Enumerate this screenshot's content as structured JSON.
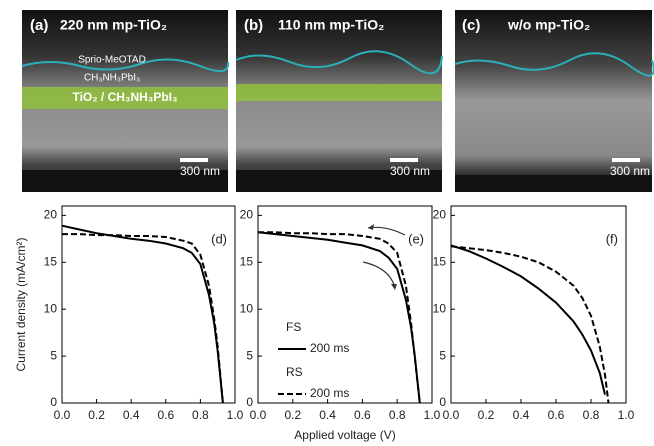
{
  "images": [
    {
      "label": "(a)",
      "title": "220 nm mp-TiO₂",
      "layers": [
        "Sprio-MeOTAD",
        "CH₃NH₃PbI₃",
        "TiO₂ / CH₃NH₃PbI₃"
      ],
      "scale": "300 nm"
    },
    {
      "label": "(b)",
      "title": "110 nm mp-TiO₂",
      "scale": "300 nm"
    },
    {
      "label": "(c)",
      "title": "w/o mp-TiO₂",
      "scale": "300 nm"
    }
  ],
  "chart_data": [
    {
      "type": "line",
      "annotation": "(d)",
      "ylabel": "Current density (mA/cm²)",
      "x": [
        0,
        0.1,
        0.2,
        0.3,
        0.4,
        0.5,
        0.6,
        0.7,
        0.75,
        0.8,
        0.85,
        0.88,
        0.9,
        0.93
      ],
      "series": [
        {
          "name": "FS",
          "color": "#000000",
          "dash": false,
          "values": [
            18.9,
            18.5,
            18.1,
            17.8,
            17.5,
            17.3,
            17.0,
            16.5,
            16.0,
            14.8,
            11.5,
            8.5,
            5.5,
            0
          ]
        },
        {
          "name": "RS",
          "color": "#000000",
          "dash": true,
          "values": [
            18.0,
            18.0,
            17.9,
            17.9,
            17.8,
            17.8,
            17.7,
            17.3,
            17.0,
            15.8,
            12.5,
            9.0,
            6.0,
            0
          ]
        }
      ],
      "xlim": [
        0,
        1
      ],
      "ylim": [
        0,
        21
      ],
      "xticks": [
        {
          "value": 0,
          "label": "0.0"
        },
        {
          "value": 0.2,
          "label": "0.2"
        },
        {
          "value": 0.4,
          "label": "0.4"
        },
        {
          "value": 0.6,
          "label": "0.6"
        },
        {
          "value": 0.8,
          "label": "0.8"
        },
        {
          "value": 1,
          "label": "1.0"
        }
      ],
      "yticks": [
        0,
        5,
        10,
        15,
        20
      ]
    },
    {
      "type": "line",
      "annotation": "(e)",
      "xlabel": "Applied voltage (V)",
      "legend_note": "200 ms",
      "x": [
        0,
        0.1,
        0.2,
        0.3,
        0.4,
        0.5,
        0.6,
        0.7,
        0.75,
        0.8,
        0.85,
        0.88,
        0.9,
        0.93
      ],
      "series": [
        {
          "name": "FS",
          "color": "#000000",
          "dash": false,
          "values": [
            18.2,
            18.0,
            17.8,
            17.6,
            17.4,
            17.1,
            16.8,
            16.2,
            15.5,
            14.3,
            11.0,
            8.0,
            5.2,
            0
          ]
        },
        {
          "name": "RS",
          "color": "#000000",
          "dash": true,
          "values": [
            18.2,
            18.2,
            18.1,
            18.1,
            18.0,
            18.0,
            17.8,
            17.5,
            17.0,
            16.0,
            12.5,
            8.5,
            5.0,
            0
          ]
        }
      ],
      "xlim": [
        0,
        1
      ],
      "ylim": [
        0,
        21
      ],
      "xticks": [
        {
          "value": 0,
          "label": "0.0"
        },
        {
          "value": 0.2,
          "label": "0.2"
        },
        {
          "value": 0.4,
          "label": "0.4"
        },
        {
          "value": 0.6,
          "label": "0.6"
        },
        {
          "value": 0.8,
          "label": "0.8"
        },
        {
          "value": 1,
          "label": "1.0"
        }
      ],
      "yticks": [
        0,
        5,
        10,
        15,
        20
      ]
    },
    {
      "type": "line",
      "annotation": "(f)",
      "x": [
        0,
        0.1,
        0.2,
        0.3,
        0.4,
        0.5,
        0.6,
        0.7,
        0.75,
        0.8,
        0.85,
        0.88,
        0.9,
        0.93
      ],
      "series": [
        {
          "name": "FS",
          "color": "#000000",
          "dash": false,
          "values": [
            16.8,
            16.2,
            15.4,
            14.5,
            13.5,
            12.2,
            10.7,
            8.7,
            7.3,
            5.6,
            3.2,
            0.9,
            null,
            null
          ]
        },
        {
          "name": "RS",
          "color": "#000000",
          "dash": true,
          "values": [
            16.7,
            16.5,
            16.3,
            16.0,
            15.6,
            15.0,
            14.0,
            12.5,
            11.2,
            9.3,
            6.0,
            3.0,
            0,
            null
          ]
        }
      ],
      "xlim": [
        0,
        1
      ],
      "ylim": [
        0,
        21
      ],
      "xticks": [
        {
          "value": 0,
          "label": "0.0"
        },
        {
          "value": 0.2,
          "label": "0.2"
        },
        {
          "value": 0.4,
          "label": "0.4"
        },
        {
          "value": 0.6,
          "label": "0.6"
        },
        {
          "value": 0.8,
          "label": "0.8"
        },
        {
          "value": 1,
          "label": "1.0"
        }
      ],
      "yticks": [
        0,
        5,
        10,
        15,
        20
      ]
    }
  ]
}
